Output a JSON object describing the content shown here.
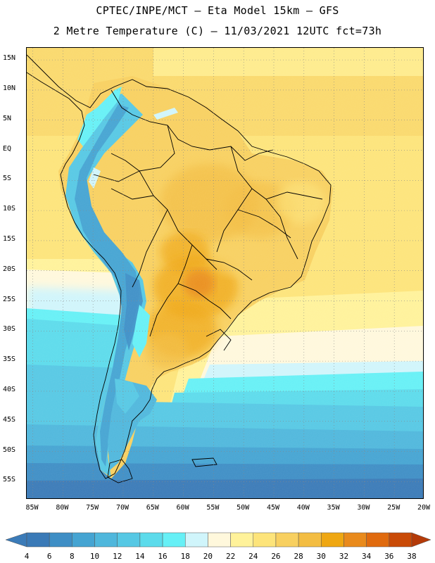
{
  "title": {
    "line1": "CPTEC/INPE/MCT –  Eta Model 15km – GFS",
    "line2": "2 Metre Temperature (C) – 11/03/2021 12UTC fct=73h"
  },
  "map": {
    "variable": "2 Metre Temperature",
    "units": "C",
    "lat_range": [
      -58,
      17
    ],
    "lon_range": [
      -86,
      -20
    ],
    "lat_ticks": [
      {
        "value": 15,
        "label": "15N"
      },
      {
        "value": 10,
        "label": "10N"
      },
      {
        "value": 5,
        "label": "5N"
      },
      {
        "value": 0,
        "label": "EQ"
      },
      {
        "value": -5,
        "label": "5S"
      },
      {
        "value": -10,
        "label": "10S"
      },
      {
        "value": -15,
        "label": "15S"
      },
      {
        "value": -20,
        "label": "20S"
      },
      {
        "value": -25,
        "label": "25S"
      },
      {
        "value": -30,
        "label": "30S"
      },
      {
        "value": -35,
        "label": "35S"
      },
      {
        "value": -40,
        "label": "40S"
      },
      {
        "value": -45,
        "label": "45S"
      },
      {
        "value": -50,
        "label": "50S"
      },
      {
        "value": -55,
        "label": "55S"
      }
    ],
    "lon_ticks": [
      {
        "value": -85,
        "label": "85W"
      },
      {
        "value": -80,
        "label": "80W"
      },
      {
        "value": -75,
        "label": "75W"
      },
      {
        "value": -70,
        "label": "70W"
      },
      {
        "value": -65,
        "label": "65W"
      },
      {
        "value": -60,
        "label": "60W"
      },
      {
        "value": -55,
        "label": "55W"
      },
      {
        "value": -50,
        "label": "50W"
      },
      {
        "value": -45,
        "label": "45W"
      },
      {
        "value": -40,
        "label": "40W"
      },
      {
        "value": -35,
        "label": "35W"
      },
      {
        "value": -30,
        "label": "30W"
      },
      {
        "value": -25,
        "label": "25W"
      },
      {
        "value": -20,
        "label": "20W"
      }
    ]
  },
  "colorbar": {
    "labels": [
      "4",
      "6",
      "8",
      "10",
      "12",
      "14",
      "16",
      "18",
      "20",
      "22",
      "24",
      "26",
      "28",
      "30",
      "32",
      "34",
      "36",
      "38"
    ],
    "colors": {
      "below": "#3b7bb8",
      "bins": [
        "#3a7ab7",
        "#3e8ec5",
        "#45a4d2",
        "#4fb7dc",
        "#56c8e4",
        "#5cdbeb",
        "#66f0f6",
        "#d0f5fb",
        "#fff8dc",
        "#fff29a",
        "#fde47a",
        "#f8d060",
        "#f3bd42",
        "#efa712",
        "#e98a1c",
        "#e06a0e",
        "#c94a06"
      ],
      "above": "#b43a08"
    }
  }
}
